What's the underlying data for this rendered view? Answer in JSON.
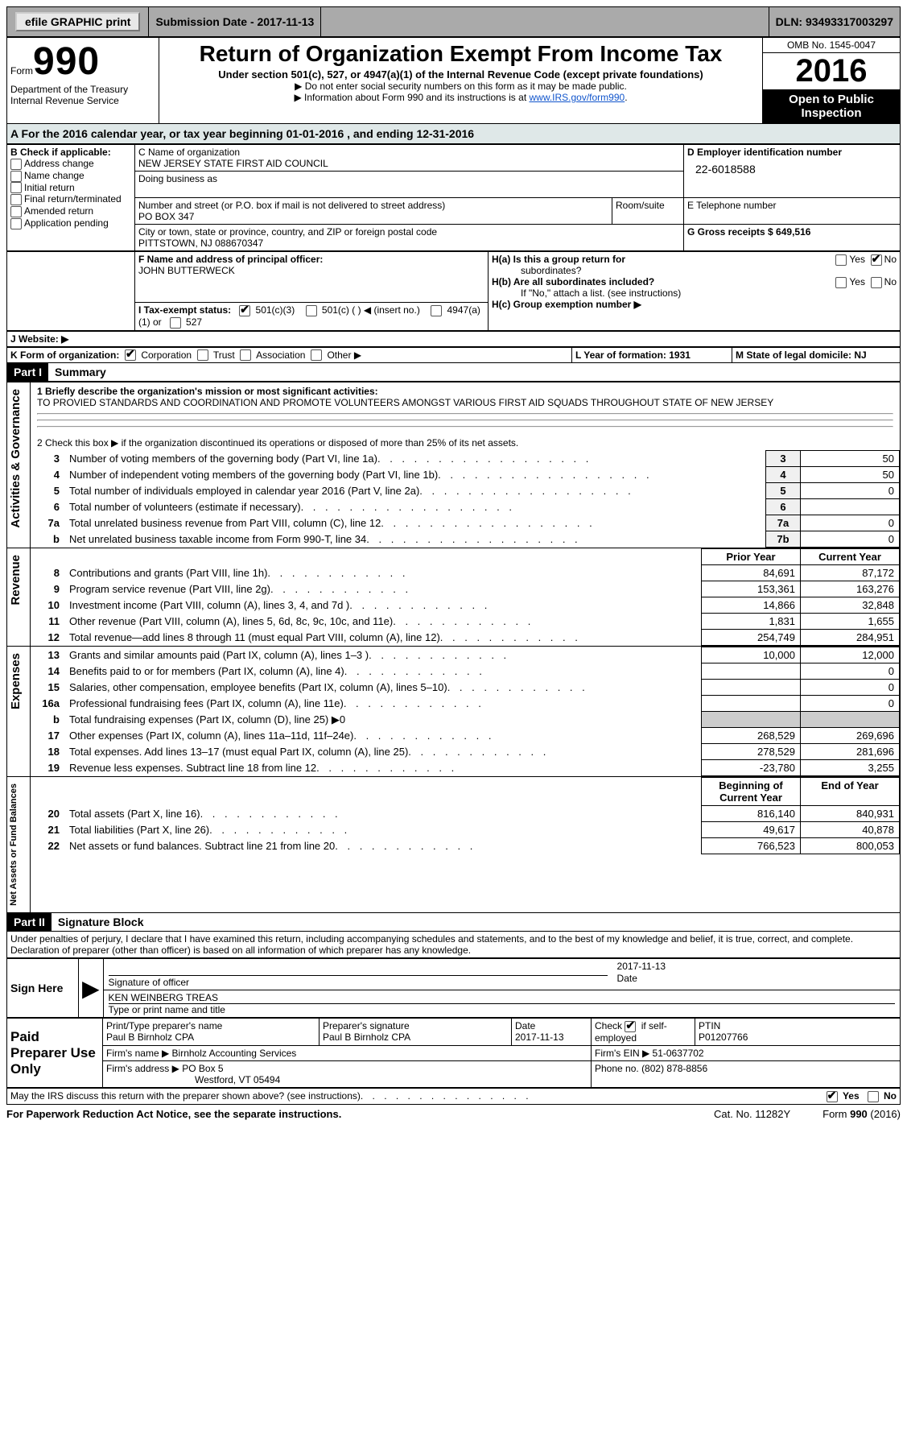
{
  "topbar": {
    "efile": "efile GRAPHIC print",
    "submission_label": "Submission Date - 2017-11-13",
    "dln_label": "DLN: 93493317003297"
  },
  "header": {
    "form_label": "Form",
    "form_number": "990",
    "dept1": "Department of the Treasury",
    "dept2": "Internal Revenue Service",
    "title": "Return of Organization Exempt From Income Tax",
    "subtitle": "Under section 501(c), 527, or 4947(a)(1) of the Internal Revenue Code (except private foundations)",
    "note1": "▶ Do not enter social security numbers on this form as it may be made public.",
    "note2_prefix": "▶ Information about Form 990 and its instructions is at ",
    "note2_link": "www.IRS.gov/form990",
    "omb": "OMB No. 1545-0047",
    "year": "2016",
    "inspect": "Open to Public Inspection"
  },
  "rowA": "A  For the 2016 calendar year, or tax year beginning 01-01-2016   , and ending 12-31-2016",
  "boxB": {
    "label": "B Check if applicable:",
    "items": [
      "Address change",
      "Name change",
      "Initial return",
      "Final return/terminated",
      "Amended return",
      "Application pending"
    ]
  },
  "boxC": {
    "name_label": "C Name of organization",
    "name": "NEW JERSEY STATE FIRST AID COUNCIL",
    "dba_label": "Doing business as",
    "street_label": "Number and street (or P.O. box if mail is not delivered to street address)",
    "room_label": "Room/suite",
    "street": "PO BOX 347",
    "city_label": "City or town, state or province, country, and ZIP or foreign postal code",
    "city": "PITTSTOWN, NJ  088670347"
  },
  "boxD": {
    "label": "D Employer identification number",
    "value": "22-6018588"
  },
  "boxE": {
    "label": "E Telephone number",
    "value": ""
  },
  "boxG": {
    "label": "G Gross receipts $ 649,516"
  },
  "boxF": {
    "label": "F  Name and address of principal officer:",
    "value": "JOHN BUTTERWECK"
  },
  "boxH": {
    "a_label": "H(a)  Is this a group return for",
    "a_sub": "subordinates?",
    "b_label": "H(b)  Are all subordinates included?",
    "b_note": "If \"No,\" attach a list. (see instructions)",
    "c_label": "H(c)  Group exemption number ▶",
    "yes": "Yes",
    "no": "No"
  },
  "boxI": {
    "label": "I  Tax-exempt status:",
    "opt1": "501(c)(3)",
    "opt2": "501(c) (   ) ◀ (insert no.)",
    "opt3": "4947(a)(1) or",
    "opt4": "527"
  },
  "boxJ": "J  Website: ▶",
  "boxK": {
    "label": "K Form of organization:",
    "opts": [
      "Corporation",
      "Trust",
      "Association",
      "Other ▶"
    ]
  },
  "boxL": "L Year of formation: 1931",
  "boxM": "M State of legal domicile: NJ",
  "part1": {
    "hdr": "Part I",
    "title": "Summary"
  },
  "summary": {
    "line1_label": "1  Briefly describe the organization's mission or most significant activities:",
    "line1_text": "TO PROVIED STANDARDS AND COORDINATION AND PROMOTE VOLUNTEERS AMONGST VARIOUS FIRST AID SQUADS THROUGHOUT STATE OF NEW JERSEY",
    "line2": "2   Check this box ▶       if the organization discontinued its operations or disposed of more than 25% of its net assets.",
    "lines_gov": [
      {
        "n": "3",
        "t": "Number of voting members of the governing body (Part VI, line 1a)",
        "box": "3",
        "v": "50"
      },
      {
        "n": "4",
        "t": "Number of independent voting members of the governing body (Part VI, line 1b)",
        "box": "4",
        "v": "50"
      },
      {
        "n": "5",
        "t": "Total number of individuals employed in calendar year 2016 (Part V, line 2a)",
        "box": "5",
        "v": "0"
      },
      {
        "n": "6",
        "t": "Total number of volunteers (estimate if necessary)",
        "box": "6",
        "v": ""
      },
      {
        "n": "7a",
        "t": "Total unrelated business revenue from Part VIII, column (C), line 12",
        "box": "7a",
        "v": "0"
      },
      {
        "n": "b",
        "t": "Net unrelated business taxable income from Form 990-T, line 34",
        "box": "7b",
        "v": "0"
      }
    ],
    "col_prior": "Prior Year",
    "col_current": "Current Year",
    "revenue": [
      {
        "n": "8",
        "t": "Contributions and grants (Part VIII, line 1h)",
        "p": "84,691",
        "c": "87,172"
      },
      {
        "n": "9",
        "t": "Program service revenue (Part VIII, line 2g)",
        "p": "153,361",
        "c": "163,276"
      },
      {
        "n": "10",
        "t": "Investment income (Part VIII, column (A), lines 3, 4, and 7d )",
        "p": "14,866",
        "c": "32,848"
      },
      {
        "n": "11",
        "t": "Other revenue (Part VIII, column (A), lines 5, 6d, 8c, 9c, 10c, and 11e)",
        "p": "1,831",
        "c": "1,655"
      },
      {
        "n": "12",
        "t": "Total revenue—add lines 8 through 11 (must equal Part VIII, column (A), line 12)",
        "p": "254,749",
        "c": "284,951"
      }
    ],
    "expenses": [
      {
        "n": "13",
        "t": "Grants and similar amounts paid (Part IX, column (A), lines 1–3 )",
        "p": "10,000",
        "c": "12,000"
      },
      {
        "n": "14",
        "t": "Benefits paid to or for members (Part IX, column (A), line 4)",
        "p": "",
        "c": "0"
      },
      {
        "n": "15",
        "t": "Salaries, other compensation, employee benefits (Part IX, column (A), lines 5–10)",
        "p": "",
        "c": "0"
      },
      {
        "n": "16a",
        "t": "Professional fundraising fees (Part IX, column (A), line 11e)",
        "p": "",
        "c": "0"
      },
      {
        "n": "b",
        "t": "Total fundraising expenses (Part IX, column (D), line 25) ▶0",
        "shade": true
      },
      {
        "n": "17",
        "t": "Other expenses (Part IX, column (A), lines 11a–11d, 11f–24e)",
        "p": "268,529",
        "c": "269,696"
      },
      {
        "n": "18",
        "t": "Total expenses. Add lines 13–17 (must equal Part IX, column (A), line 25)",
        "p": "278,529",
        "c": "281,696"
      },
      {
        "n": "19",
        "t": "Revenue less expenses. Subtract line 18 from line 12",
        "p": "-23,780",
        "c": "3,255"
      }
    ],
    "col_begin": "Beginning of Current Year",
    "col_end": "End of Year",
    "netassets": [
      {
        "n": "20",
        "t": "Total assets (Part X, line 16)",
        "p": "816,140",
        "c": "840,931"
      },
      {
        "n": "21",
        "t": "Total liabilities (Part X, line 26)",
        "p": "49,617",
        "c": "40,878"
      },
      {
        "n": "22",
        "t": "Net assets or fund balances. Subtract line 21 from line 20",
        "p": "766,523",
        "c": "800,053"
      }
    ],
    "vlabels": {
      "gov": "Activities & Governance",
      "rev": "Revenue",
      "exp": "Expenses",
      "net": "Net Assets or Fund Balances"
    }
  },
  "part2": {
    "hdr": "Part II",
    "title": "Signature Block"
  },
  "sig": {
    "perjury": "Under penalties of perjury, I declare that I have examined this return, including accompanying schedules and statements, and to the best of my knowledge and belief, it is true, correct, and complete. Declaration of preparer (other than officer) is based on all information of which preparer has any knowledge.",
    "sign_here": "Sign Here",
    "sig_officer": "Signature of officer",
    "date_label": "Date",
    "sig_date": "2017-11-13",
    "name_title": "KEN WEINBERG TREAS",
    "name_title_label": "Type or print name and title",
    "paid": "Paid Preparer Use Only",
    "prep_name_label": "Print/Type preparer's name",
    "prep_name": "Paul B Birnholz CPA",
    "prep_sig_label": "Preparer's signature",
    "prep_sig": "Paul B Birnholz CPA",
    "prep_date_label": "Date",
    "prep_date": "2017-11-13",
    "check_label": "Check         if self-employed",
    "ptin_label": "PTIN",
    "ptin": "P01207766",
    "firm_name_label": "Firm's name      ▶",
    "firm_name": "Birnholz Accounting Services",
    "firm_ein_label": "Firm's EIN ▶",
    "firm_ein": "51-0637702",
    "firm_addr_label": "Firm's address ▶",
    "firm_addr1": "PO Box 5",
    "firm_addr2": "Westford, VT  05494",
    "firm_phone_label": "Phone no.",
    "firm_phone": "(802) 878-8856",
    "discuss": "May the IRS discuss this return with the preparer shown above? (see instructions)",
    "yes": "Yes",
    "no": "No"
  },
  "footer": {
    "l": "For Paperwork Reduction Act Notice, see the separate instructions.",
    "c": "Cat. No. 11282Y",
    "r": "Form 990 (2016)"
  }
}
